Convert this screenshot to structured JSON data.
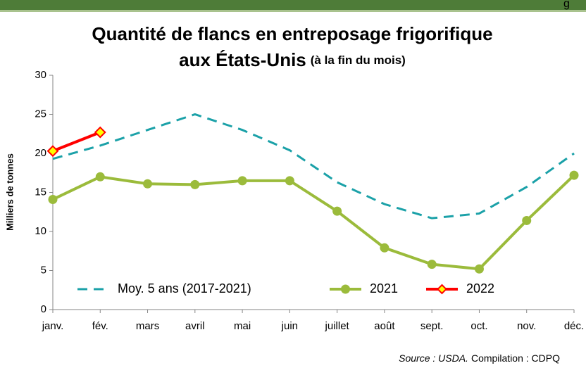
{
  "header_fragment": "g",
  "chart_data": {
    "type": "line",
    "title": "Quantité de flancs en entreposage frigorifique",
    "title_line2": "aux États-Unis",
    "subtitle": "(à la fin du mois)",
    "ylabel": "Milliers de tonnes",
    "categories": [
      "janv.",
      "fév.",
      "mars",
      "avril",
      "mai",
      "juin",
      "juillet",
      "août",
      "sept.",
      "oct.",
      "nov.",
      "déc."
    ],
    "ylim": [
      0,
      30
    ],
    "yticks": [
      0,
      5,
      10,
      15,
      20,
      25,
      30
    ],
    "grid": false,
    "legend": "bottom",
    "series": [
      {
        "name": "Moy. 5 ans (2017-2021)",
        "color": "#1ba1a8",
        "style": "dashed",
        "marker": "none",
        "values": [
          19.3,
          21,
          23,
          25,
          23,
          20.4,
          16.3,
          13.5,
          11.7,
          12.3,
          15.7,
          20
        ]
      },
      {
        "name": "2021",
        "color": "#9bbb3b",
        "style": "solid",
        "marker": "circle",
        "values": [
          14.1,
          17.0,
          16.1,
          16.0,
          16.5,
          16.5,
          12.6,
          7.9,
          5.8,
          5.2,
          11.4,
          17.2
        ]
      },
      {
        "name": "2022",
        "color": "#ff0000",
        "style": "solid",
        "marker": "diamond",
        "marker_fill": "#ffff00",
        "values": [
          20.3,
          22.7,
          null,
          null,
          null,
          null,
          null,
          null,
          null,
          null,
          null,
          null
        ]
      }
    ],
    "source": "Source : USDA.",
    "compilation": "Compilation : CDPQ"
  }
}
